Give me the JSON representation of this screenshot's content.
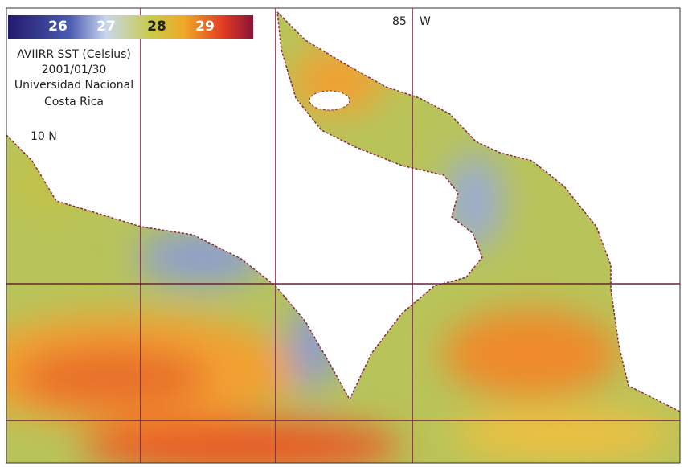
{
  "colorbar": {
    "ticks": [
      26,
      27,
      28,
      29
    ]
  },
  "caption": {
    "lines": [
      "AVIIRR SST (Celsius)",
      "2001/01/30",
      "Universidad Nacional",
      "Costa Rica"
    ]
  },
  "labels": {
    "latitude": "10 N",
    "longitude": "85",
    "longitude_hemisphere": "W"
  }
}
